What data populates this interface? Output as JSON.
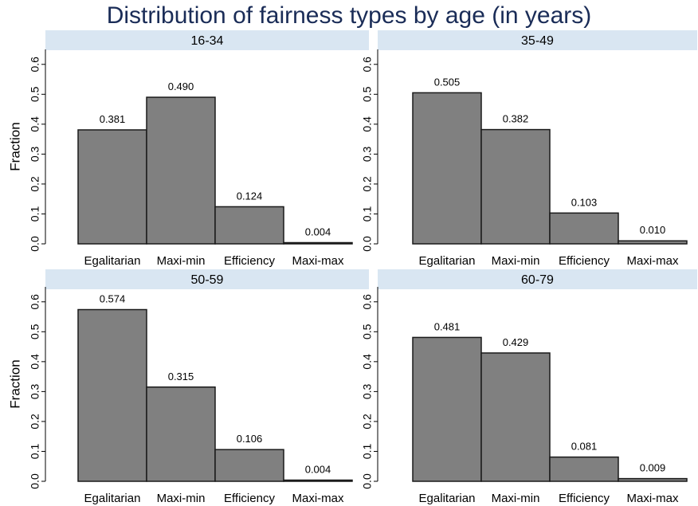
{
  "title": "Distribution of fairness types by age (in years)",
  "chart_data": {
    "type": "bar",
    "title": "Distribution of fairness types by age (in years)",
    "ylabel": "Fraction",
    "xlabel": "",
    "categories": [
      "Egalitarian",
      "Maxi-min",
      "Efficiency",
      "Maxi-max"
    ],
    "ylim": [
      0,
      0.65
    ],
    "yticks": [
      "0.0",
      "0.1",
      "0.2",
      "0.3",
      "0.4",
      "0.5",
      "0.6"
    ],
    "bar_color": "#808080",
    "strip_color": "#d9e6f2",
    "title_color": "#1a2c57",
    "panels": [
      {
        "name": "16-34",
        "values": [
          0.381,
          0.49,
          0.124,
          0.004
        ],
        "labels": [
          "0.381",
          "0.490",
          "0.124",
          "0.004"
        ]
      },
      {
        "name": "35-49",
        "values": [
          0.505,
          0.382,
          0.103,
          0.01
        ],
        "labels": [
          "0.505",
          "0.382",
          "0.103",
          "0.010"
        ]
      },
      {
        "name": "50-59",
        "values": [
          0.574,
          0.315,
          0.106,
          0.004
        ],
        "labels": [
          "0.574",
          "0.315",
          "0.106",
          "0.004"
        ]
      },
      {
        "name": "60-79",
        "values": [
          0.481,
          0.429,
          0.081,
          0.009
        ],
        "labels": [
          "0.481",
          "0.429",
          "0.081",
          "0.009"
        ]
      }
    ]
  }
}
